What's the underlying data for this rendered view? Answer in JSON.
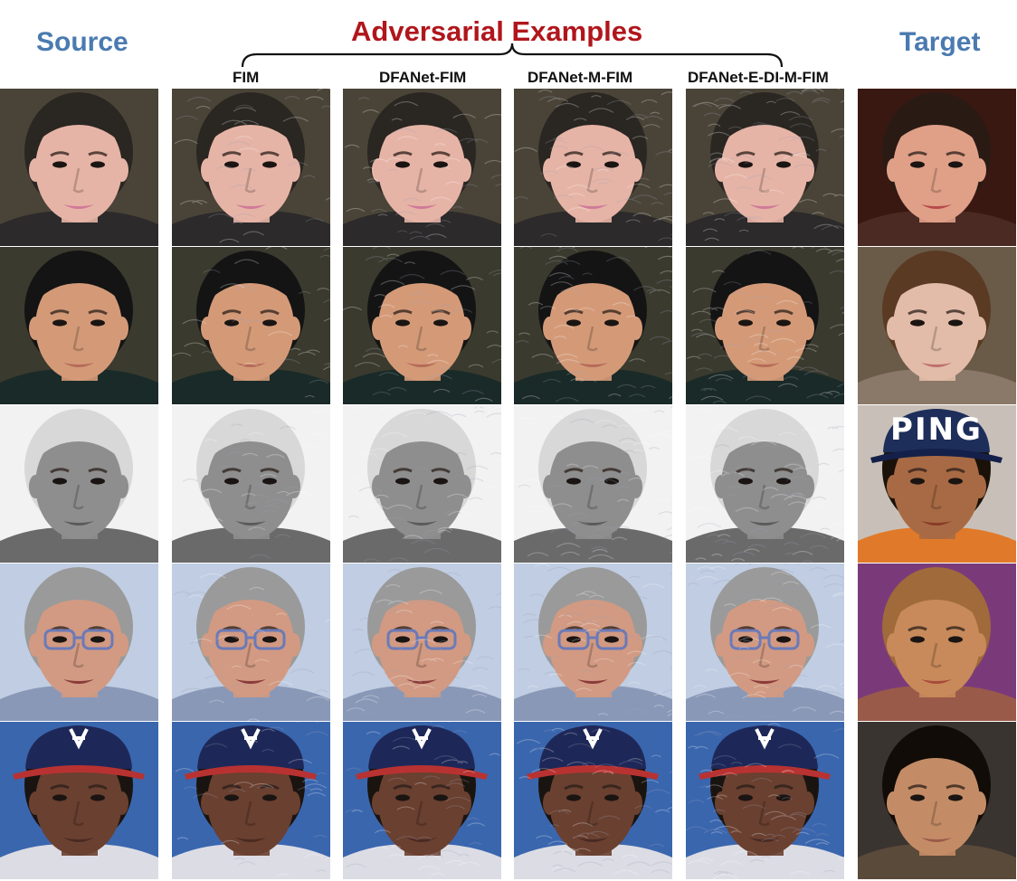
{
  "headers": {
    "source": "Source",
    "adversarial": "Adversarial Examples",
    "target": "Target"
  },
  "methods": [
    "FIM",
    "DFANet-FIM",
    "DFANet-M-FIM",
    "DFANet-E-DI-M-FIM"
  ],
  "target_cap_text": "PING",
  "colors": {
    "source_header": "#4a7ab0",
    "target_header": "#4a7ab0",
    "adversarial_header": "#b0161c"
  },
  "rows": [
    {
      "bg": "#4a4438",
      "skin": "#e6b4a6",
      "hair": "#2a2621",
      "lips": "#d07a98",
      "shirt": "#2c2a2a",
      "cap": null
    },
    {
      "bg": "#3a3a2e",
      "skin": "#d49a78",
      "hair": "#141414",
      "lips": "#b56a58",
      "shirt": "#1a2a28",
      "cap": null
    },
    {
      "bg": "#f2f2f2",
      "skin": "#8e8e8e",
      "hair": "#d8d8d8",
      "lips": "#5a5a5a",
      "shirt": "#6a6a6a",
      "cap": null
    },
    {
      "bg": "#c0cde2",
      "skin": "#d29a82",
      "hair": "#9a9a9a",
      "lips": "#8a3a3a",
      "shirt": "#8a98b8",
      "cap": null,
      "glasses": true
    },
    {
      "bg": "#3a66ae",
      "skin": "#6a4030",
      "hair": "#1a1410",
      "lips": "#4a2a22",
      "shirt": "#dcdce4",
      "cap": "#1e2858"
    }
  ],
  "targets": [
    {
      "bg": "#3a1812",
      "skin": "#e0a088",
      "hair": "#2a1a14",
      "lips": "#b84a4a",
      "shirt": "#4a2a22"
    },
    {
      "bg": "#6a5a48",
      "skin": "#e2bca8",
      "hair": "#5a3a22",
      "lips": "#c07070",
      "shirt": "#8a7868"
    },
    {
      "bg": "#c8c0b8",
      "skin": "#a86a44",
      "hair": "#1a1208",
      "lips": "#8a3a2a",
      "shirt": "#e07a2a",
      "cap": "#1e2e5a"
    },
    {
      "bg": "#7a3a7a",
      "skin": "#c88a5a",
      "hair": "#a06a3a",
      "lips": "#a84a3a",
      "shirt": "#9a5a4a"
    },
    {
      "bg": "#3a3430",
      "skin": "#c48c66",
      "hair": "#120c08",
      "lips": "#9a5a4a",
      "shirt": "#5a4a3a"
    }
  ]
}
